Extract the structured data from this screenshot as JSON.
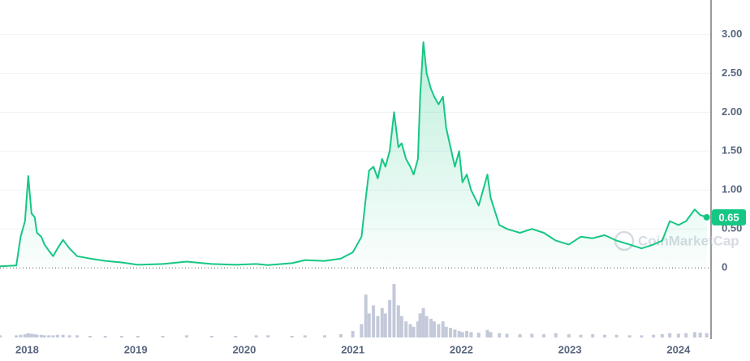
{
  "chart_data": {
    "type": "line",
    "watermark": "CoinMarketCap",
    "x": [
      2017.75,
      2017.9,
      2017.94,
      2017.98,
      2018.01,
      2018.04,
      2018.07,
      2018.09,
      2018.13,
      2018.16,
      2018.2,
      2018.24,
      2018.28,
      2018.33,
      2018.39,
      2018.46,
      2018.58,
      2018.72,
      2018.87,
      2019.02,
      2019.25,
      2019.47,
      2019.7,
      2019.92,
      2020.11,
      2020.22,
      2020.44,
      2020.56,
      2020.74,
      2020.89,
      2021.0,
      2021.08,
      2021.12,
      2021.15,
      2021.19,
      2021.23,
      2021.27,
      2021.3,
      2021.34,
      2021.38,
      2021.42,
      2021.45,
      2021.49,
      2021.53,
      2021.56,
      2021.6,
      2021.62,
      2021.65,
      2021.68,
      2021.72,
      2021.75,
      2021.79,
      2021.83,
      2021.86,
      2021.9,
      2021.94,
      2021.98,
      2022.01,
      2022.05,
      2022.09,
      2022.16,
      2022.24,
      2022.27,
      2022.35,
      2022.42,
      2022.54,
      2022.65,
      2022.76,
      2022.87,
      2022.99,
      2023.1,
      2023.21,
      2023.32,
      2023.43,
      2023.55,
      2023.66,
      2023.77,
      2023.85,
      2023.92,
      2024.0,
      2024.07,
      2024.15,
      2024.2,
      2024.26
    ],
    "series": [
      {
        "color": "#16c784",
        "values": [
          0.02,
          0.03,
          0.4,
          0.6,
          1.18,
          0.7,
          0.65,
          0.45,
          0.4,
          0.3,
          0.22,
          0.15,
          0.25,
          0.36,
          0.25,
          0.15,
          0.12,
          0.09,
          0.07,
          0.04,
          0.05,
          0.08,
          0.05,
          0.04,
          0.05,
          0.035,
          0.06,
          0.1,
          0.09,
          0.12,
          0.2,
          0.4,
          0.9,
          1.25,
          1.3,
          1.15,
          1.4,
          1.3,
          1.5,
          2.0,
          1.55,
          1.6,
          1.4,
          1.3,
          1.2,
          1.4,
          2.2,
          2.9,
          2.5,
          2.3,
          2.2,
          2.1,
          2.2,
          1.8,
          1.55,
          1.3,
          1.5,
          1.1,
          1.2,
          1.0,
          0.8,
          1.2,
          0.9,
          0.55,
          0.5,
          0.45,
          0.5,
          0.45,
          0.35,
          0.3,
          0.4,
          0.38,
          0.42,
          0.35,
          0.3,
          0.25,
          0.3,
          0.35,
          0.6,
          0.55,
          0.6,
          0.75,
          0.68,
          0.65
        ]
      }
    ],
    "volume": {
      "color": "#c3c9d9",
      "ylim": [
        0,
        100
      ],
      "values": [
        4,
        4,
        5,
        6,
        8,
        7,
        6,
        5,
        5,
        4,
        4,
        4,
        5,
        5,
        4,
        4,
        3,
        3,
        3,
        3,
        3,
        4,
        3,
        3,
        4,
        4,
        3,
        4,
        4,
        6,
        12,
        25,
        80,
        45,
        60,
        40,
        55,
        45,
        70,
        100,
        60,
        40,
        30,
        25,
        20,
        30,
        45,
        55,
        40,
        35,
        30,
        25,
        30,
        20,
        18,
        15,
        12,
        10,
        12,
        10,
        9,
        14,
        10,
        8,
        7,
        6,
        7,
        6,
        8,
        6,
        5,
        6,
        5,
        5,
        4,
        4,
        5,
        6,
        8,
        7,
        8,
        10,
        9,
        8
      ]
    },
    "current_price": 0.65,
    "xlim": [
      2017.75,
      2024.3
    ],
    "xticks": [
      2018,
      2019,
      2020,
      2021,
      2022,
      2023,
      2024
    ],
    "ylim": [
      -0.05,
      3.4
    ],
    "yticks": [
      0,
      {
        "value": 0.5,
        "label": "0.50"
      },
      {
        "value": 1,
        "label": "1.00"
      },
      {
        "value": 1.5,
        "label": "1.50"
      },
      {
        "value": 2,
        "label": "2.00"
      },
      {
        "value": 2.5,
        "label": "2.50"
      },
      {
        "value": 3,
        "label": "3.00"
      }
    ],
    "grid": true
  }
}
